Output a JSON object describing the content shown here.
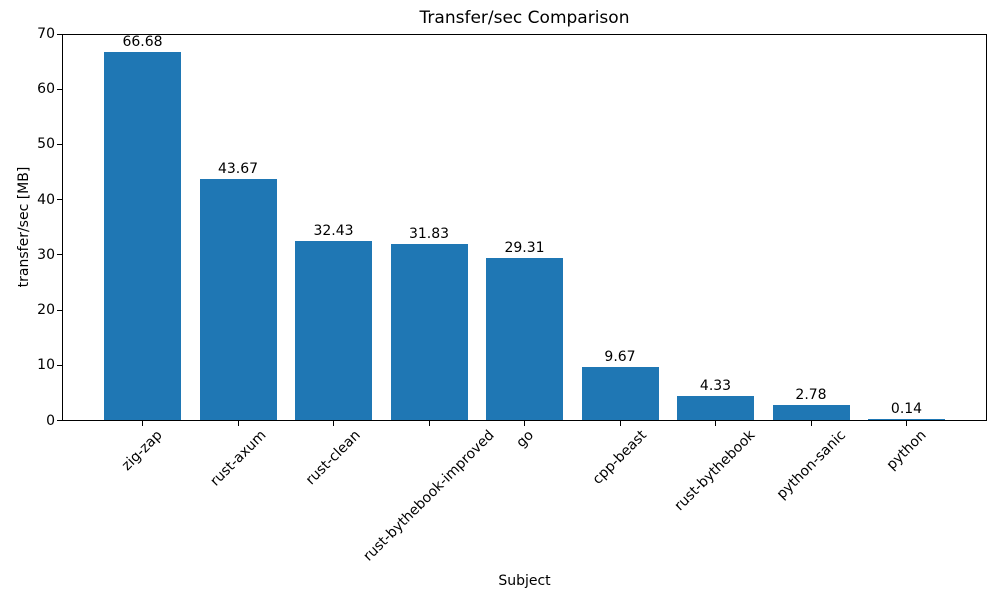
{
  "chart_data": {
    "type": "bar",
    "title": "Transfer/sec Comparison",
    "xlabel": "Subject",
    "ylabel": "transfer/sec [MB]",
    "categories": [
      "zig-zap",
      "rust-axum",
      "rust-clean",
      "rust-bythebook-improved",
      "go",
      "cpp-beast",
      "rust-bythebook",
      "python-sanic",
      "python"
    ],
    "values": [
      66.68,
      43.67,
      32.43,
      31.83,
      29.31,
      9.67,
      4.33,
      2.78,
      0.14
    ],
    "bar_labels": [
      "66.68",
      "43.67",
      "32.43",
      "31.83",
      "29.31",
      "9.67",
      "4.33",
      "2.78",
      "0.14"
    ],
    "yticks": [
      "0",
      "10",
      "20",
      "30",
      "40",
      "50",
      "60",
      "70"
    ],
    "ylim": [
      0,
      70
    ],
    "bar_color": "#1f77b4",
    "axis_color": "#000000",
    "grid": false,
    "legend": null,
    "x_tick_rotation_deg": 45
  }
}
